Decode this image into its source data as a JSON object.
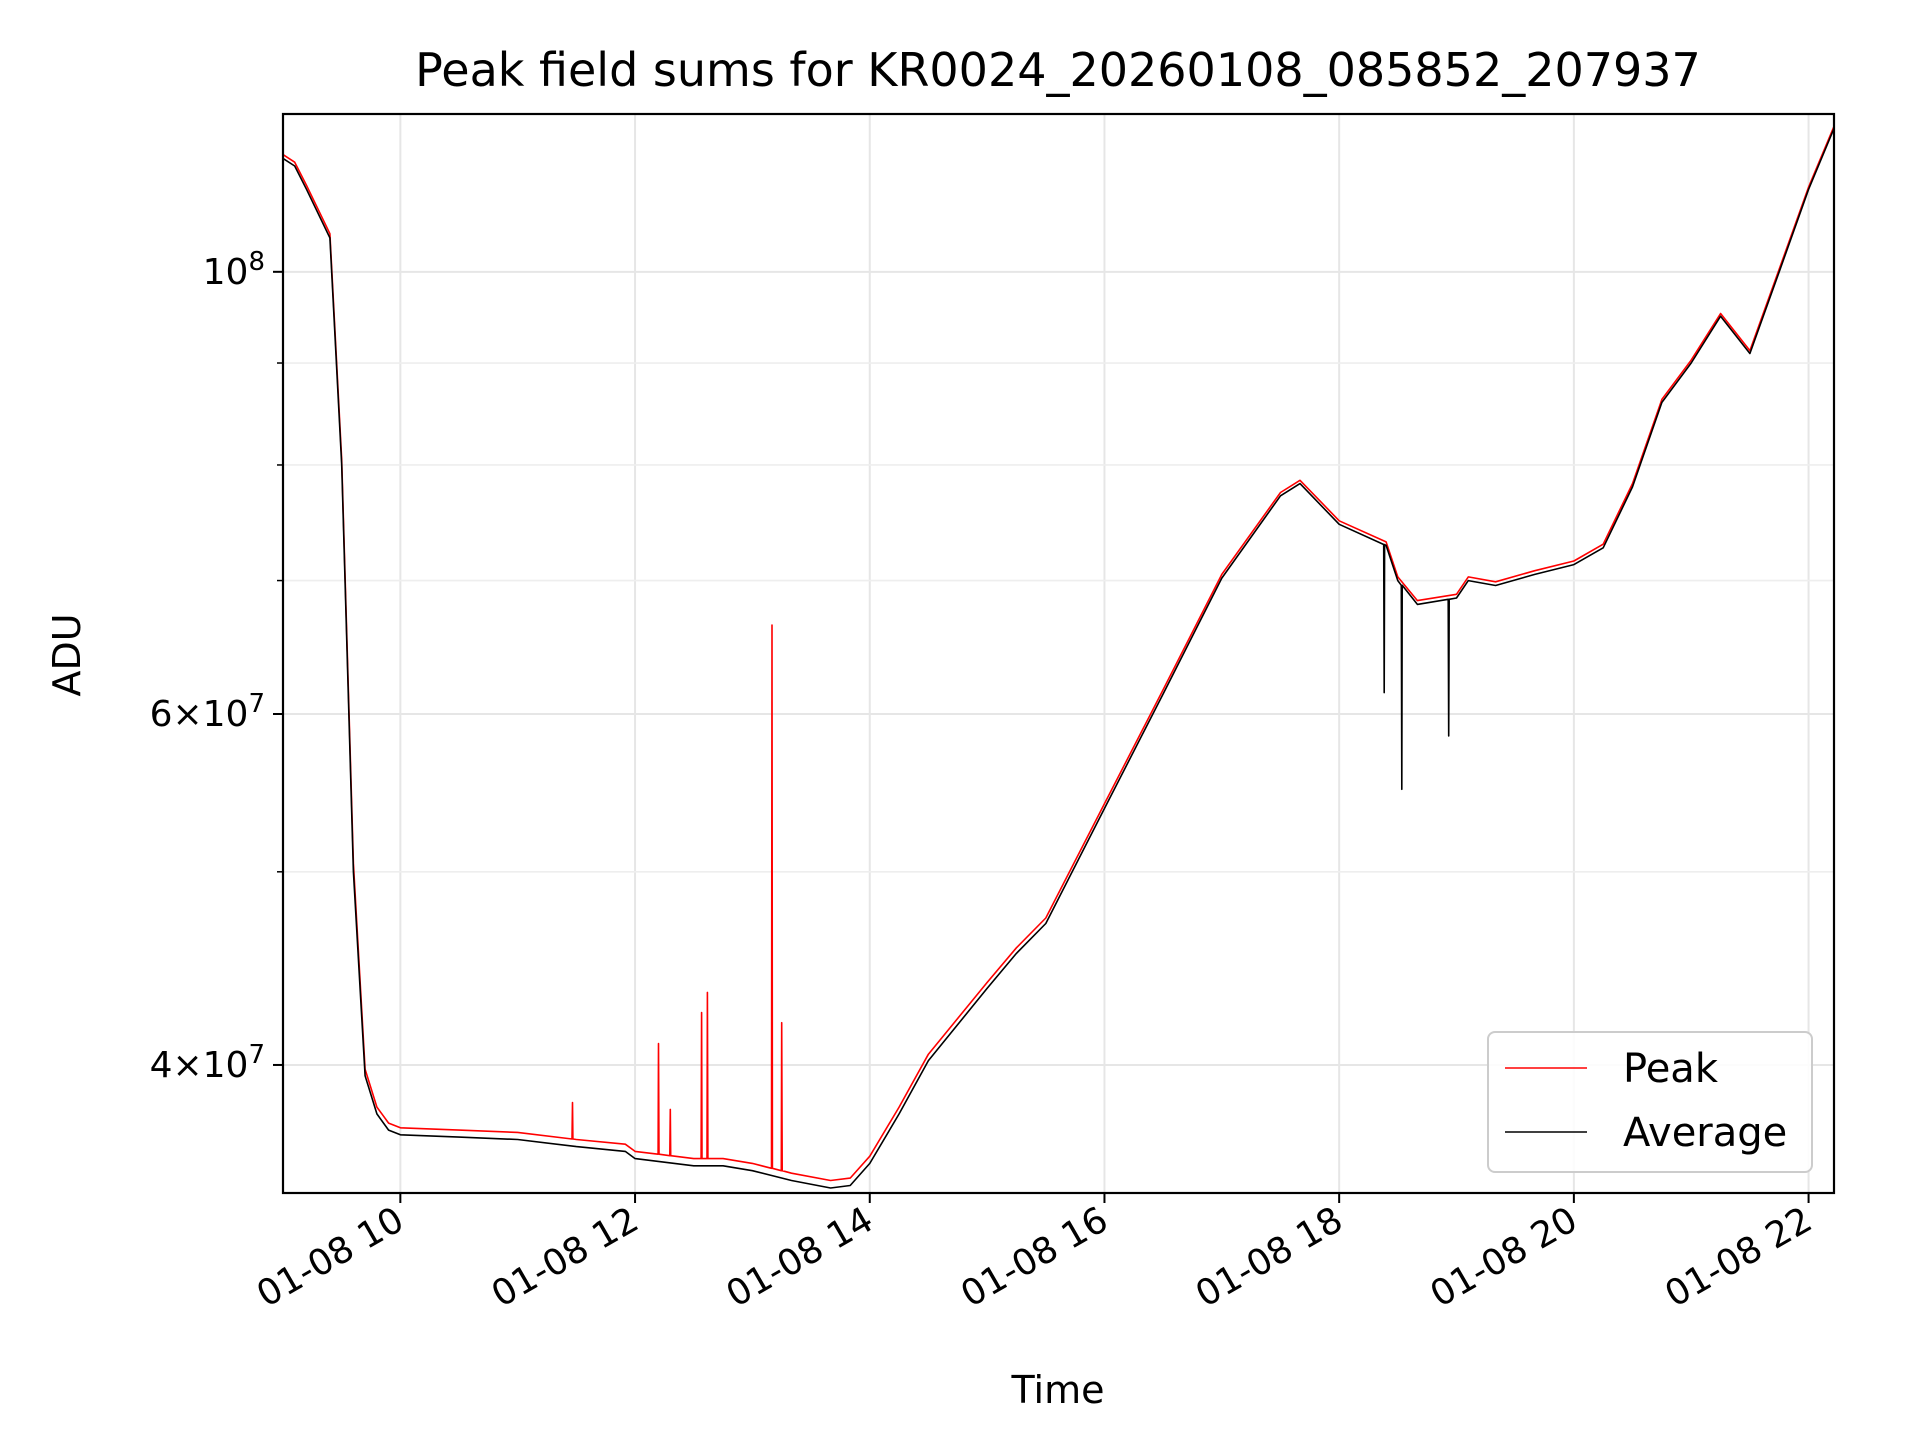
{
  "chart_data": {
    "type": "line",
    "title": "Peak field sums for KR0024_20260108_085852_207937",
    "xlabel": "Time",
    "ylabel": "ADU",
    "y_scale": "log",
    "grid": true,
    "legend_position": "lower right",
    "xlim": [
      "01-08 09:00",
      "01-08 22:13"
    ],
    "ylim": [
      34500000,
      120000000
    ],
    "x_ticks": [
      "01-08 10",
      "01-08 12",
      "01-08 14",
      "01-08 16",
      "01-08 18",
      "01-08 20",
      "01-08 22"
    ],
    "x_tick_hours": [
      10,
      12,
      14,
      16,
      18,
      20,
      22
    ],
    "y_ticks": [
      {
        "value": 40000000,
        "mant": "4",
        "exp": "7"
      },
      {
        "value": 60000000,
        "mant": "6",
        "exp": "7"
      },
      {
        "value": 100000000,
        "mant": "",
        "exp": "8"
      }
    ],
    "y_minor_ticks": [
      50000000,
      70000000,
      80000000,
      90000000
    ],
    "colors": {
      "Peak": "#ff0000",
      "Average": "#000000"
    },
    "series": [
      {
        "name": "Average",
        "x": [
          "09:00",
          "09:06",
          "09:12",
          "09:24",
          "09:30",
          "09:36",
          "09:42",
          "09:48",
          "09:54",
          "10:00",
          "10:30",
          "11:00",
          "11:30",
          "11:55",
          "12:00",
          "12:30",
          "12:45",
          "13:00",
          "13:20",
          "13:40",
          "13:50",
          "14:00",
          "14:15",
          "14:30",
          "15:00",
          "15:15",
          "15:30",
          "16:00",
          "16:30",
          "17:00",
          "17:30",
          "17:40",
          "18:00",
          "18:24",
          "18:30",
          "18:40",
          "19:00",
          "19:06",
          "19:20",
          "19:40",
          "20:00",
          "20:15",
          "20:30",
          "20:45",
          "21:00",
          "21:15",
          "21:30",
          "21:45",
          "22:00",
          "22:13"
        ],
        "y": [
          114000000,
          113000000,
          110000000,
          104000000,
          80000000,
          50000000,
          39500000,
          37800000,
          37100000,
          36900000,
          36800000,
          36700000,
          36400000,
          36200000,
          35900000,
          35600000,
          35600000,
          35400000,
          35000000,
          34700000,
          34800000,
          35700000,
          37800000,
          40200000,
          43700000,
          45500000,
          47100000,
          53800000,
          61400000,
          70200000,
          77200000,
          78300000,
          74700000,
          72900000,
          70000000,
          68100000,
          68600000,
          70000000,
          69600000,
          70500000,
          71300000,
          72700000,
          78000000,
          86000000,
          90000000,
          95000000,
          91000000,
          100000000,
          110000000,
          118000000
        ]
      },
      {
        "name": "Peak",
        "x": [
          "09:00",
          "09:06",
          "09:12",
          "09:24",
          "09:30",
          "09:36",
          "09:42",
          "09:48",
          "09:54",
          "10:00",
          "10:30",
          "11:00",
          "11:30",
          "11:55",
          "12:00",
          "12:30",
          "12:45",
          "13:00",
          "13:20",
          "13:40",
          "13:50",
          "14:00",
          "14:15",
          "14:30",
          "15:00",
          "15:15",
          "15:30",
          "16:00",
          "16:30",
          "17:00",
          "17:30",
          "17:40",
          "18:00",
          "18:24",
          "18:30",
          "18:40",
          "19:00",
          "19:06",
          "19:20",
          "19:40",
          "20:00",
          "20:15",
          "20:30",
          "20:45",
          "21:00",
          "21:15",
          "21:30",
          "21:45",
          "22:00",
          "22:13"
        ],
        "y": [
          114500000,
          113500000,
          110500000,
          104500000,
          80500000,
          50500000,
          39800000,
          38100000,
          37400000,
          37200000,
          37100000,
          37000000,
          36700000,
          36500000,
          36200000,
          35900000,
          35900000,
          35700000,
          35300000,
          35000000,
          35100000,
          36000000,
          38100000,
          40500000,
          44000000,
          45800000,
          47400000,
          54100000,
          61700000,
          70500000,
          77500000,
          78600000,
          75000000,
          73200000,
          70300000,
          68400000,
          68900000,
          70300000,
          69900000,
          70800000,
          71600000,
          73000000,
          78300000,
          86300000,
          90300000,
          95300000,
          91300000,
          100300000,
          110300000,
          118300000
        ],
        "spikes": [
          {
            "x": "11:28",
            "y": 38300000
          },
          {
            "x": "12:12",
            "y": 41000000
          },
          {
            "x": "12:18",
            "y": 38000000
          },
          {
            "x": "12:34",
            "y": 42500000
          },
          {
            "x": "12:37",
            "y": 43500000
          },
          {
            "x": "13:10",
            "y": 66500000
          },
          {
            "x": "13:15",
            "y": 42000000
          }
        ]
      }
    ],
    "average_dips": [
      {
        "x": "18:23",
        "y": 61500000
      },
      {
        "x": "18:32",
        "y": 55000000
      },
      {
        "x": "18:56",
        "y": 58500000
      }
    ]
  }
}
